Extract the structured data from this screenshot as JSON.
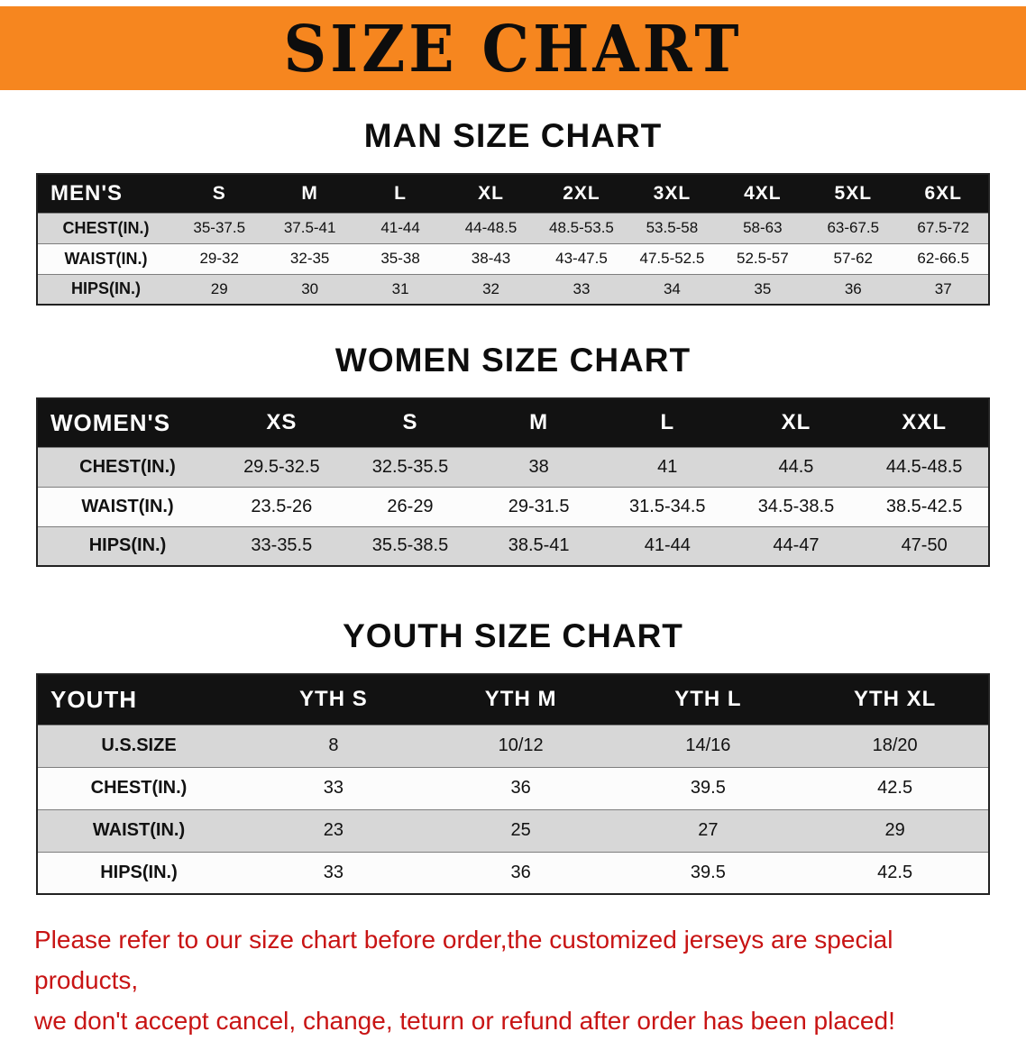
{
  "banner": {
    "title": "SIZE CHART"
  },
  "sections": [
    {
      "id": "men",
      "heading": "MAN SIZE CHART",
      "table": {
        "header": [
          "MEN'S",
          "S",
          "M",
          "L",
          "XL",
          "2XL",
          "3XL",
          "4XL",
          "5XL",
          "6XL"
        ],
        "rows": [
          {
            "label": "CHEST(IN.)",
            "values": [
              "35-37.5",
              "37.5-41",
              "41-44",
              "44-48.5",
              "48.5-53.5",
              "53.5-58",
              "58-63",
              "63-67.5",
              "67.5-72"
            ]
          },
          {
            "label": "WAIST(IN.)",
            "values": [
              "29-32",
              "32-35",
              "35-38",
              "38-43",
              "43-47.5",
              "47.5-52.5",
              "52.5-57",
              "57-62",
              "62-66.5"
            ]
          },
          {
            "label": "HIPS(IN.)",
            "values": [
              "29",
              "30",
              "31",
              "32",
              "33",
              "34",
              "35",
              "36",
              "37"
            ]
          }
        ]
      }
    },
    {
      "id": "women",
      "heading": "WOMEN SIZE CHART",
      "table": {
        "header": [
          "WOMEN'S",
          "XS",
          "S",
          "M",
          "L",
          "XL",
          "XXL"
        ],
        "rows": [
          {
            "label": "CHEST(IN.)",
            "values": [
              "29.5-32.5",
              "32.5-35.5",
              "38",
              "41",
              "44.5",
              "44.5-48.5"
            ]
          },
          {
            "label": "WAIST(IN.)",
            "values": [
              "23.5-26",
              "26-29",
              "29-31.5",
              "31.5-34.5",
              "34.5-38.5",
              "38.5-42.5"
            ]
          },
          {
            "label": "HIPS(IN.)",
            "values": [
              "33-35.5",
              "35.5-38.5",
              "38.5-41",
              "41-44",
              "44-47",
              "47-50"
            ]
          }
        ]
      }
    },
    {
      "id": "youth",
      "heading": "YOUTH SIZE CHART",
      "table": {
        "header": [
          "YOUTH",
          "YTH S",
          "YTH M",
          "YTH L",
          "YTH XL"
        ],
        "rows": [
          {
            "label": "U.S.SIZE",
            "values": [
              "8",
              "10/12",
              "14/16",
              "18/20"
            ]
          },
          {
            "label": "CHEST(IN.)",
            "values": [
              "33",
              "36",
              "39.5",
              "42.5"
            ]
          },
          {
            "label": "WAIST(IN.)",
            "values": [
              "23",
              "25",
              "27",
              "29"
            ]
          },
          {
            "label": "HIPS(IN.)",
            "values": [
              "33",
              "36",
              "39.5",
              "42.5"
            ]
          }
        ]
      }
    }
  ],
  "disclaimer": {
    "line1": "Please refer to our size chart before order,the customized jerseys are special products,",
    "line2": "we don't accept cancel, change, teturn or refund after order has been placed!"
  },
  "colors": {
    "banner_bg": "#f6861f",
    "header_bg": "#121212",
    "row_alt_bg": "#d7d7d7",
    "disclaimer_text": "#c81414"
  }
}
